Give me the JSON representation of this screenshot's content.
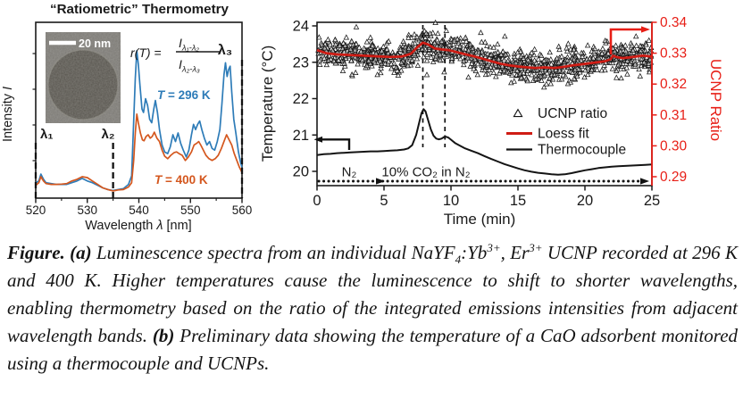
{
  "chart_data": [
    {
      "panel": "a",
      "type": "line",
      "title": "“Ratiometric” Thermometry",
      "xlabel_parts": [
        "Wavelength ",
        "λ",
        " [nm]"
      ],
      "ylabel_parts": [
        "Intensity ",
        "I"
      ],
      "xlim": [
        520,
        560
      ],
      "x_ticks": [
        520,
        530,
        540,
        550,
        560
      ],
      "ylim": [
        0,
        1
      ],
      "grid": false,
      "lambda_markers": [
        {
          "label": "λ₁",
          "nm": 520
        },
        {
          "label": "λ₂",
          "nm": 535
        },
        {
          "label": "λ₃",
          "nm": 560
        }
      ],
      "formula": {
        "lhs": "r(T) =",
        "numerator": "I",
        "numerator_sub": "λ₁-λ₂",
        "denominator": "I",
        "denominator_sub": "λ₂-λ₃"
      },
      "inset": {
        "scale_bar_label": "20 nm",
        "description": "TEM image of a single UCNP"
      },
      "series": [
        {
          "name": "T = 296 K",
          "color": "#2e7cb8",
          "points": [
            [
              520,
              0.09
            ],
            [
              520.6,
              0.1
            ],
            [
              521,
              0.14
            ],
            [
              521.5,
              0.11
            ],
            [
              522,
              0.09
            ],
            [
              523,
              0.085
            ],
            [
              524,
              0.08
            ],
            [
              525,
              0.08
            ],
            [
              526,
              0.08
            ],
            [
              527,
              0.09
            ],
            [
              528,
              0.1
            ],
            [
              529,
              0.115
            ],
            [
              530,
              0.1
            ],
            [
              531,
              0.09
            ],
            [
              532,
              0.075
            ],
            [
              533,
              0.06
            ],
            [
              534,
              0.05
            ],
            [
              535,
              0.045
            ],
            [
              536,
              0.05
            ],
            [
              537,
              0.055
            ],
            [
              538,
              0.08
            ],
            [
              538.6,
              0.13
            ],
            [
              539,
              0.45
            ],
            [
              539.3,
              0.7
            ],
            [
              539.6,
              0.86
            ],
            [
              539.9,
              0.78
            ],
            [
              540.2,
              0.66
            ],
            [
              540.6,
              0.52
            ],
            [
              540.9,
              0.5
            ],
            [
              541.3,
              0.58
            ],
            [
              541.7,
              0.54
            ],
            [
              542.1,
              0.46
            ],
            [
              542.5,
              0.44
            ],
            [
              542.9,
              0.52
            ],
            [
              543.2,
              0.57
            ],
            [
              543.6,
              0.5
            ],
            [
              544,
              0.4
            ],
            [
              544.5,
              0.31
            ],
            [
              545,
              0.27
            ],
            [
              545.6,
              0.26
            ],
            [
              546.1,
              0.3
            ],
            [
              546.6,
              0.37
            ],
            [
              547.1,
              0.33
            ],
            [
              547.6,
              0.38
            ],
            [
              548.1,
              0.32
            ],
            [
              548.6,
              0.28
            ],
            [
              549.2,
              0.24
            ],
            [
              549.7,
              0.28
            ],
            [
              550.2,
              0.37
            ],
            [
              550.6,
              0.43
            ],
            [
              551,
              0.4
            ],
            [
              551.4,
              0.43
            ],
            [
              551.8,
              0.45
            ],
            [
              552.2,
              0.4
            ],
            [
              552.7,
              0.35
            ],
            [
              553.2,
              0.31
            ],
            [
              553.7,
              0.33
            ],
            [
              554.2,
              0.29
            ],
            [
              554.7,
              0.28
            ],
            [
              555.2,
              0.33
            ],
            [
              555.7,
              0.4
            ],
            [
              556.1,
              0.55
            ],
            [
              556.5,
              0.72
            ],
            [
              556.8,
              0.79
            ],
            [
              557.1,
              0.71
            ],
            [
              557.4,
              0.75
            ],
            [
              557.7,
              0.77
            ],
            [
              558,
              0.62
            ],
            [
              558.4,
              0.46
            ],
            [
              558.8,
              0.38
            ],
            [
              559.3,
              0.27
            ],
            [
              559.7,
              0.21
            ],
            [
              560,
              0.18
            ]
          ]
        },
        {
          "name": "T = 400 K",
          "color": "#d4571e",
          "points": [
            [
              520,
              0.075
            ],
            [
              520.6,
              0.09
            ],
            [
              521,
              0.125
            ],
            [
              521.5,
              0.1
            ],
            [
              522,
              0.085
            ],
            [
              523,
              0.08
            ],
            [
              524,
              0.08
            ],
            [
              525,
              0.082
            ],
            [
              526,
              0.085
            ],
            [
              527,
              0.1
            ],
            [
              528,
              0.11
            ],
            [
              529,
              0.125
            ],
            [
              530,
              0.12
            ],
            [
              531,
              0.1
            ],
            [
              532,
              0.08
            ],
            [
              533,
              0.06
            ],
            [
              534,
              0.05
            ],
            [
              535,
              0.042
            ],
            [
              536,
              0.048
            ],
            [
              537,
              0.05
            ],
            [
              538,
              0.065
            ],
            [
              538.6,
              0.09
            ],
            [
              539,
              0.22
            ],
            [
              539.3,
              0.38
            ],
            [
              539.6,
              0.49
            ],
            [
              539.9,
              0.44
            ],
            [
              540.3,
              0.38
            ],
            [
              540.7,
              0.34
            ],
            [
              541,
              0.335
            ],
            [
              541.4,
              0.36
            ],
            [
              541.8,
              0.37
            ],
            [
              542.2,
              0.35
            ],
            [
              542.6,
              0.36
            ],
            [
              543,
              0.385
            ],
            [
              543.5,
              0.35
            ],
            [
              544,
              0.33
            ],
            [
              544.5,
              0.28
            ],
            [
              545,
              0.245
            ],
            [
              545.6,
              0.23
            ],
            [
              546.2,
              0.25
            ],
            [
              546.8,
              0.265
            ],
            [
              547.3,
              0.27
            ],
            [
              547.8,
              0.26
            ],
            [
              548.4,
              0.25
            ],
            [
              549,
              0.22
            ],
            [
              549.6,
              0.24
            ],
            [
              550.2,
              0.27
            ],
            [
              550.7,
              0.31
            ],
            [
              551.2,
              0.32
            ],
            [
              551.6,
              0.33
            ],
            [
              552,
              0.31
            ],
            [
              552.5,
              0.28
            ],
            [
              553,
              0.25
            ],
            [
              553.6,
              0.23
            ],
            [
              554.2,
              0.22
            ],
            [
              554.8,
              0.23
            ],
            [
              555.4,
              0.25
            ],
            [
              556,
              0.29
            ],
            [
              556.5,
              0.33
            ],
            [
              557,
              0.37
            ],
            [
              557.5,
              0.34
            ],
            [
              558,
              0.31
            ],
            [
              558.5,
              0.26
            ],
            [
              559,
              0.22
            ],
            [
              559.5,
              0.18
            ],
            [
              560,
              0.15
            ]
          ]
        }
      ]
    },
    {
      "panel": "b",
      "type": "scatter",
      "xlabel": "Time (min)",
      "ylabel_left": "Temperature (°C)",
      "ylabel_right": "UCNP Ratio",
      "xlim": [
        0,
        25
      ],
      "x_ticks": [
        0,
        5,
        10,
        15,
        20,
        25
      ],
      "ylim_left": [
        19.6,
        24.1
      ],
      "y_ticks_left": [
        20,
        21,
        22,
        23,
        24
      ],
      "ylim_right": [
        0.287,
        0.34
      ],
      "y_ticks_right": [
        "0.29",
        "0.30",
        "0.31",
        "0.32",
        "0.33",
        "0.34"
      ],
      "axis_color_right": "#e71e16",
      "legend": [
        {
          "label": "UCNP ratio",
          "marker": "open-triangle",
          "color": "#1a1a1a"
        },
        {
          "label": "Loess fit",
          "marker": "line",
          "color": "#cf1c14"
        },
        {
          "label": "Thermocouple",
          "marker": "line",
          "color": "#141414"
        }
      ],
      "annotations": {
        "n2_label": "N₂",
        "co2_label": "10% CO₂ in N₂"
      },
      "dashed_vlines_min": [
        7.9,
        9.55
      ],
      "loess_fit_ratio": [
        [
          0,
          0.331
        ],
        [
          0.7,
          0.33
        ],
        [
          1.5,
          0.3296
        ],
        [
          2.5,
          0.3294
        ],
        [
          3.5,
          0.3292
        ],
        [
          4.5,
          0.329
        ],
        [
          5.5,
          0.3288
        ],
        [
          6.3,
          0.3289
        ],
        [
          7,
          0.3298
        ],
        [
          7.5,
          0.332
        ],
        [
          7.9,
          0.3334
        ],
        [
          8.3,
          0.3328
        ],
        [
          8.8,
          0.3315
        ],
        [
          9.3,
          0.3312
        ],
        [
          9.8,
          0.331
        ],
        [
          10.3,
          0.3305
        ],
        [
          11,
          0.3297
        ],
        [
          11.7,
          0.329
        ],
        [
          12.3,
          0.3283
        ],
        [
          13,
          0.3274
        ],
        [
          13.7,
          0.3266
        ],
        [
          14.3,
          0.3261
        ],
        [
          15,
          0.3257
        ],
        [
          15.7,
          0.3254
        ],
        [
          16.3,
          0.3252
        ],
        [
          17,
          0.3254
        ],
        [
          17.7,
          0.3252
        ],
        [
          18.3,
          0.3255
        ],
        [
          19,
          0.326
        ],
        [
          19.7,
          0.3264
        ],
        [
          20.3,
          0.3267
        ],
        [
          21,
          0.3271
        ],
        [
          21.5,
          0.3274
        ],
        [
          21.9,
          0.328
        ],
        [
          22.1,
          0.3292
        ],
        [
          22.4,
          0.3287
        ],
        [
          22.8,
          0.3284
        ],
        [
          23.3,
          0.3286
        ],
        [
          23.8,
          0.3289
        ],
        [
          24.3,
          0.3292
        ],
        [
          25,
          0.3289
        ]
      ],
      "thermocouple_c": [
        [
          0,
          20.45
        ],
        [
          0.5,
          20.47
        ],
        [
          1,
          20.48
        ],
        [
          1.5,
          20.5
        ],
        [
          2,
          20.51
        ],
        [
          2.5,
          20.52
        ],
        [
          3,
          20.53
        ],
        [
          3.5,
          20.54
        ],
        [
          4,
          20.55
        ],
        [
          4.5,
          20.55
        ],
        [
          5,
          20.56
        ],
        [
          5.5,
          20.57
        ],
        [
          6,
          20.58
        ],
        [
          6.5,
          20.6
        ],
        [
          6.8,
          20.63
        ],
        [
          7.1,
          20.72
        ],
        [
          7.4,
          21.0
        ],
        [
          7.6,
          21.3
        ],
        [
          7.8,
          21.6
        ],
        [
          7.95,
          21.71
        ],
        [
          8.1,
          21.65
        ],
        [
          8.3,
          21.4
        ],
        [
          8.5,
          21.15
        ],
        [
          8.7,
          20.98
        ],
        [
          8.9,
          20.9
        ],
        [
          9.1,
          20.88
        ],
        [
          9.3,
          20.9
        ],
        [
          9.55,
          20.96
        ],
        [
          9.8,
          20.93
        ],
        [
          10,
          20.87
        ],
        [
          10.3,
          20.78
        ],
        [
          10.7,
          20.7
        ],
        [
          11,
          20.64
        ],
        [
          11.5,
          20.57
        ],
        [
          12,
          20.5
        ],
        [
          12.5,
          20.42
        ],
        [
          13,
          20.34
        ],
        [
          13.5,
          20.27
        ],
        [
          14,
          20.2
        ],
        [
          14.5,
          20.14
        ],
        [
          15,
          20.08
        ],
        [
          15.5,
          20.03
        ],
        [
          16,
          19.99
        ],
        [
          16.5,
          19.96
        ],
        [
          17,
          19.94
        ],
        [
          17.5,
          19.92
        ],
        [
          18,
          19.91
        ],
        [
          18.5,
          19.92
        ],
        [
          19,
          19.95
        ],
        [
          19.5,
          19.99
        ],
        [
          20,
          20.03
        ],
        [
          20.5,
          20.06
        ],
        [
          21,
          20.09
        ],
        [
          21.5,
          20.11
        ],
        [
          22,
          20.13
        ],
        [
          22.5,
          20.14
        ],
        [
          23,
          20.15
        ],
        [
          23.5,
          20.16
        ],
        [
          24,
          20.17
        ],
        [
          24.5,
          20.18
        ],
        [
          25,
          20.19
        ]
      ],
      "scatter_model": {
        "n": 1200,
        "sigma": 0.00235,
        "seed": 20,
        "distribution": "open triangles scattered around loess fit"
      }
    }
  ],
  "caption": {
    "segments": [
      {
        "t": "Figure. (a) ",
        "b": true
      },
      {
        "t": "Luminescence spectra from an individual NaYF"
      },
      {
        "t": "4",
        "sub": true
      },
      {
        "t": ":Yb"
      },
      {
        "t": "3+",
        "sup": true
      },
      {
        "t": ", Er"
      },
      {
        "t": "3+",
        "sup": true
      },
      {
        "t": " UCNP recorded at 296 K and 400 K. Higher temperatures cause the luminescence to shift to shorter wavelengths, enabling thermometry based on the ratio of the integrated emissions intensities from adjacent wavelength bands. "
      },
      {
        "t": "(b)",
        "b": true
      },
      {
        "t": " Preliminary data showing the temperature of a CaO adsorbent monitored using a thermocouple and UCNPs."
      }
    ]
  }
}
